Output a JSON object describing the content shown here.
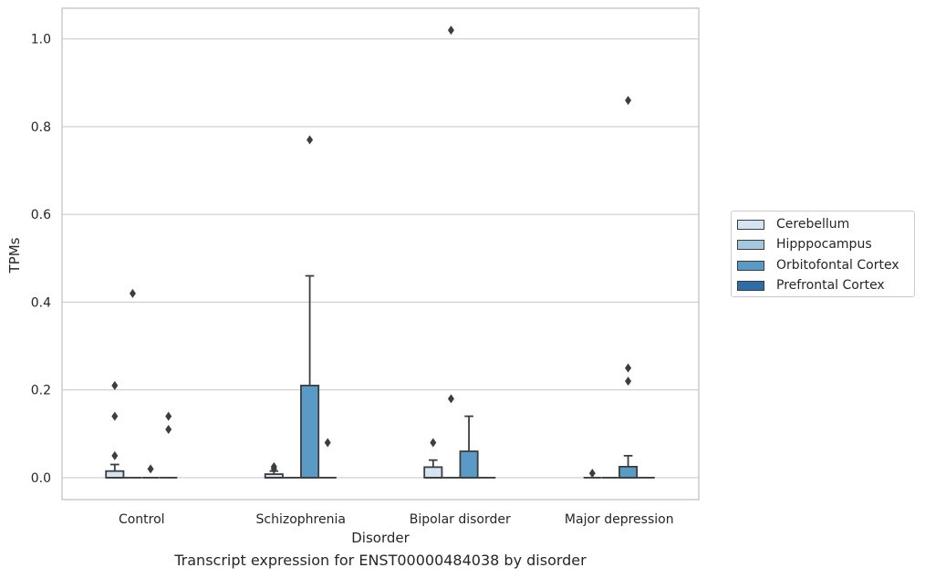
{
  "chart_data": {
    "type": "box",
    "xlabel": "Disorder",
    "ylabel": "TPMs",
    "caption": "Transcript expression for ENST00000484038 by disorder",
    "ylim": [
      -0.05,
      1.07
    ],
    "yticks": [
      "0.0",
      "0.2",
      "0.4",
      "0.6",
      "0.8",
      "1.0"
    ],
    "grid": "horizontal",
    "legend_position": "right",
    "categories": [
      "Control",
      "Schizophrenia",
      "Bipolar disorder",
      "Major depression"
    ],
    "series": [
      {
        "name": "Cerebellum",
        "color": "#d5e4f2",
        "boxes": [
          {
            "q1": 0,
            "median": 0,
            "q3": 0.015,
            "whisker_low": 0,
            "whisker_high": 0.03,
            "outliers": [
              0.05,
              0.14,
              0.21
            ]
          },
          {
            "q1": 0,
            "median": 0,
            "q3": 0.008,
            "whisker_low": 0,
            "whisker_high": 0.015,
            "outliers": [
              0.02,
              0.025
            ]
          },
          {
            "q1": 0,
            "median": 0,
            "q3": 0.024,
            "whisker_low": 0,
            "whisker_high": 0.04,
            "outliers": [
              0.08
            ]
          },
          {
            "q1": 0,
            "median": 0,
            "q3": 0,
            "whisker_low": 0,
            "whisker_high": 0,
            "outliers": [
              0.01
            ]
          }
        ]
      },
      {
        "name": "Hipppocampus",
        "color": "#a4c8e0",
        "boxes": [
          {
            "q1": 0,
            "median": 0,
            "q3": 0,
            "whisker_low": 0,
            "whisker_high": 0,
            "outliers": [
              0.42
            ]
          },
          {
            "q1": 0,
            "median": 0,
            "q3": 0,
            "whisker_low": 0,
            "whisker_high": 0,
            "outliers": []
          },
          {
            "q1": 0,
            "median": 0,
            "q3": 0,
            "whisker_low": 0,
            "whisker_high": 0,
            "outliers": [
              0.18,
              1.02
            ]
          },
          {
            "q1": 0,
            "median": 0,
            "q3": 0,
            "whisker_low": 0,
            "whisker_high": 0,
            "outliers": []
          }
        ]
      },
      {
        "name": "Orbitofontal Cortex",
        "color": "#5a9ac6",
        "boxes": [
          {
            "q1": 0,
            "median": 0,
            "q3": 0,
            "whisker_low": 0,
            "whisker_high": 0,
            "outliers": [
              0.02
            ]
          },
          {
            "q1": 0,
            "median": 0,
            "q3": 0.21,
            "whisker_low": 0,
            "whisker_high": 0.46,
            "outliers": [
              0.77
            ]
          },
          {
            "q1": 0,
            "median": 0,
            "q3": 0.06,
            "whisker_low": 0,
            "whisker_high": 0.14,
            "outliers": []
          },
          {
            "q1": 0,
            "median": 0,
            "q3": 0.025,
            "whisker_low": 0,
            "whisker_high": 0.05,
            "outliers": [
              0.22,
              0.25,
              0.86
            ]
          }
        ]
      },
      {
        "name": "Prefrontal Cortex",
        "color": "#2d6ea8",
        "boxes": [
          {
            "q1": 0,
            "median": 0,
            "q3": 0,
            "whisker_low": 0,
            "whisker_high": 0,
            "outliers": [
              0.11,
              0.14
            ]
          },
          {
            "q1": 0,
            "median": 0,
            "q3": 0,
            "whisker_low": 0,
            "whisker_high": 0,
            "outliers": [
              0.08
            ]
          },
          {
            "q1": 0,
            "median": 0,
            "q3": 0,
            "whisker_low": 0,
            "whisker_high": 0,
            "outliers": []
          },
          {
            "q1": 0,
            "median": 0,
            "q3": 0,
            "whisker_low": 0,
            "whisker_high": 0,
            "outliers": []
          }
        ]
      }
    ]
  }
}
